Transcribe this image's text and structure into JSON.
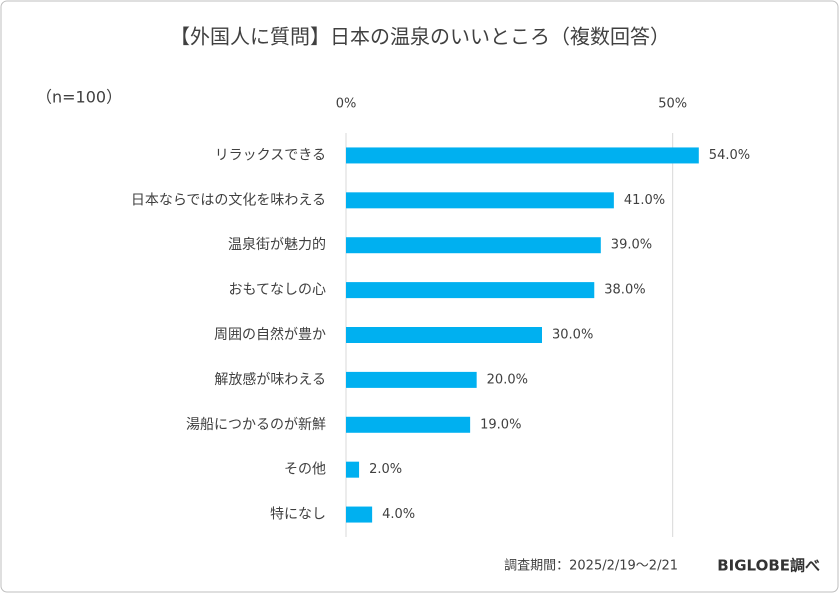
{
  "chart_data": {
    "type": "bar",
    "orientation": "horizontal",
    "title": "【外国人に質問】日本の温泉のいいところ（複数回答）",
    "note": "（n=100）",
    "source": "調査期間：2025/2/19～2/21",
    "brand": "BIGLOBE調べ",
    "categories": [
      "リラックスできる",
      "日本ならではの文化を味わえる",
      "温泉街が魅力的",
      "おもてなしの心",
      "周囲の自然が豊か",
      "解放感が味わえる",
      "湯船につかるのが新鮮",
      "その他",
      "特になし"
    ],
    "values": [
      54,
      41,
      39,
      38,
      30,
      20,
      19,
      2,
      4
    ],
    "value_labels": [
      "54.0%",
      "41.0%",
      "39.0%",
      "38.0%",
      "30.0%",
      "20.0%",
      "19.0%",
      "2.0%",
      "4.0%"
    ],
    "color": "#00b0f0",
    "xlim": [
      0,
      75
    ],
    "xticks": [
      {
        "value": 0,
        "label": "0%"
      },
      {
        "value": 50,
        "label": "50%"
      }
    ],
    "grid": true
  }
}
